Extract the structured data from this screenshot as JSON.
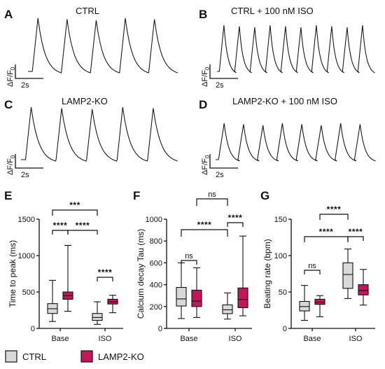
{
  "colors": {
    "ctrl": "#d9d9d9",
    "ko": "#c2185b",
    "line": "#111111"
  },
  "traces": [
    {
      "letter": "A",
      "title": "CTRL",
      "ylabel": "ΔF/F",
      "ylabel_sub": "0",
      "scale": "2s",
      "n_peaks": 5
    },
    {
      "letter": "B",
      "title": "CTRL + 100 nM ISO",
      "ylabel": "ΔF/F",
      "ylabel_sub": "0",
      "scale": "2s",
      "n_peaks": 10
    },
    {
      "letter": "C",
      "title": "LAMP2-KO",
      "ylabel": "ΔF/F",
      "ylabel_sub": "0",
      "scale": "2s",
      "n_peaks": 5
    },
    {
      "letter": "D",
      "title": "LAMP2-KO + 100 nM ISO",
      "ylabel": "ΔF/F",
      "ylabel_sub": "0",
      "scale": "2s",
      "n_peaks": 8
    }
  ],
  "legend": [
    {
      "label": "CTRL",
      "color": "#d9d9d9"
    },
    {
      "label": "LAMP2-KO",
      "color": "#c2185b"
    }
  ],
  "chart_data": [
    {
      "type": "box",
      "panel": "E",
      "ylabel": "Time to peak (ms)",
      "ylim": [
        0,
        1500
      ],
      "yticks": [
        0,
        500,
        1000,
        1500
      ],
      "categories": [
        "Base",
        "ISO"
      ],
      "series": [
        {
          "name": "CTRL",
          "boxes": [
            {
              "min": 95,
              "q1": 205,
              "median": 270,
              "q3": 340,
              "max": 660
            },
            {
              "min": 55,
              "q1": 110,
              "median": 150,
              "q3": 205,
              "max": 365
            }
          ]
        },
        {
          "name": "LAMP2-KO",
          "boxes": [
            {
              "min": 235,
              "q1": 400,
              "median": 450,
              "q3": 500,
              "max": 1140
            },
            {
              "min": 215,
              "q1": 335,
              "median": 365,
              "q3": 400,
              "max": 455
            }
          ]
        }
      ],
      "annotations": [
        {
          "text": "***",
          "from": [
            0,
            0
          ],
          "to": [
            1,
            0
          ]
        },
        {
          "text": "****",
          "from": [
            0,
            0
          ],
          "to": [
            0,
            1
          ]
        },
        {
          "text": "****",
          "from": [
            0,
            1
          ],
          "to": [
            1,
            1
          ]
        },
        {
          "text": "****",
          "from": [
            1,
            0
          ],
          "to": [
            1,
            1
          ]
        }
      ]
    },
    {
      "type": "box",
      "panel": "F",
      "ylabel": "Calcium decay Tau (ms)",
      "ylim": [
        0,
        1000
      ],
      "yticks": [
        0,
        200,
        400,
        600,
        800,
        1000
      ],
      "categories": [
        "Base",
        "ISO"
      ],
      "series": [
        {
          "name": "CTRL",
          "boxes": [
            {
              "min": 90,
              "q1": 205,
              "median": 270,
              "q3": 375,
              "max": 600
            },
            {
              "min": 85,
              "q1": 135,
              "median": 170,
              "q3": 215,
              "max": 325
            }
          ]
        },
        {
          "name": "LAMP2-KO",
          "boxes": [
            {
              "min": 100,
              "q1": 200,
              "median": 250,
              "q3": 350,
              "max": 555
            },
            {
              "min": 115,
              "q1": 190,
              "median": 265,
              "q3": 370,
              "max": 845
            }
          ]
        }
      ],
      "annotations": [
        {
          "text": "ns",
          "from": [
            0,
            1
          ],
          "to": [
            1,
            1
          ]
        },
        {
          "text": "****",
          "from": [
            0,
            0
          ],
          "to": [
            1,
            0
          ]
        },
        {
          "text": "****",
          "from": [
            1,
            0
          ],
          "to": [
            1,
            1
          ]
        },
        {
          "text": "ns",
          "from": [
            0,
            0
          ],
          "to": [
            0,
            1
          ]
        }
      ]
    },
    {
      "type": "box",
      "panel": "G",
      "ylabel": "Beating rate (bpm)",
      "ylim": [
        0,
        150
      ],
      "yticks": [
        0,
        50,
        100,
        150
      ],
      "categories": [
        "Base",
        "ISO"
      ],
      "series": [
        {
          "name": "CTRL",
          "boxes": [
            {
              "min": 11,
              "q1": 24,
              "median": 30,
              "q3": 37,
              "max": 59
            },
            {
              "min": 41,
              "q1": 55,
              "median": 74,
              "q3": 90,
              "max": 109
            }
          ]
        },
        {
          "name": "LAMP2-KO",
          "boxes": [
            {
              "min": 16,
              "q1": 33,
              "median": 36,
              "q3": 40,
              "max": 45
            },
            {
              "min": 32,
              "q1": 46,
              "median": 52,
              "q3": 60,
              "max": 81
            }
          ]
        }
      ],
      "annotations": [
        {
          "text": "****",
          "from": [
            0,
            1
          ],
          "to": [
            1,
            0
          ]
        },
        {
          "text": "****",
          "from": [
            0,
            0
          ],
          "to": [
            1,
            0
          ]
        },
        {
          "text": "****",
          "from": [
            1,
            0
          ],
          "to": [
            1,
            1
          ]
        },
        {
          "text": "ns",
          "from": [
            0,
            0
          ],
          "to": [
            0,
            1
          ]
        }
      ]
    }
  ]
}
